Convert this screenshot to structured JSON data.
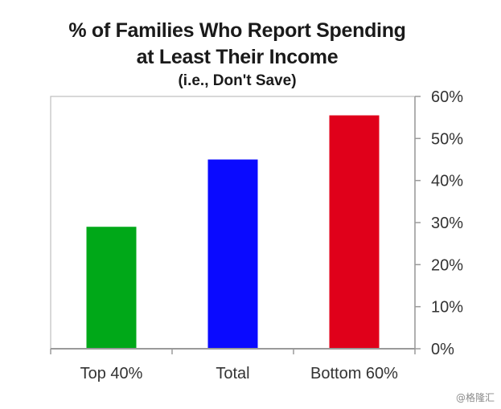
{
  "chart_data": {
    "type": "bar",
    "title_lines": [
      "% of Families Who Report Spending",
      "at Least Their Income"
    ],
    "subtitle": "(i.e., Don't Save)",
    "categories": [
      "Top 40%",
      "Total",
      "Bottom 60%"
    ],
    "values": [
      29,
      45,
      55.5
    ],
    "bar_colors": [
      "#00a818",
      "#0a0aff",
      "#e0001a"
    ],
    "ylim": [
      0,
      60
    ],
    "yticks": [
      0,
      10,
      20,
      30,
      40,
      50,
      60
    ],
    "ytick_labels": [
      "0%",
      "10%",
      "20%",
      "30%",
      "40%",
      "50%",
      "60%"
    ],
    "y_axis_position": "right",
    "grid": false,
    "xlabel": "",
    "ylabel": ""
  },
  "watermark": "@格隆汇"
}
